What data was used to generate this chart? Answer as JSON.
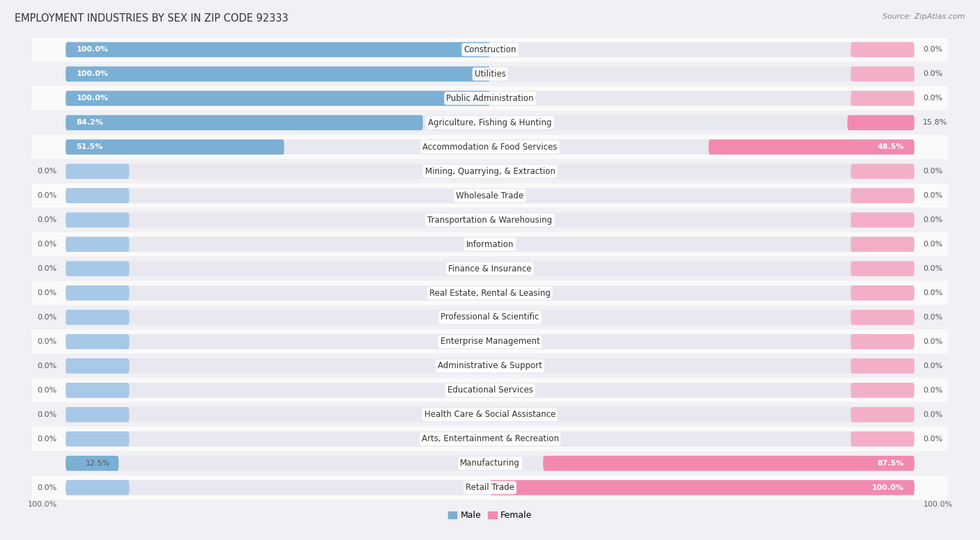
{
  "title": "EMPLOYMENT INDUSTRIES BY SEX IN ZIP CODE 92333",
  "source": "Source: ZipAtlas.com",
  "categories": [
    "Construction",
    "Utilities",
    "Public Administration",
    "Agriculture, Fishing & Hunting",
    "Accommodation & Food Services",
    "Mining, Quarrying, & Extraction",
    "Wholesale Trade",
    "Transportation & Warehousing",
    "Information",
    "Finance & Insurance",
    "Real Estate, Rental & Leasing",
    "Professional & Scientific",
    "Enterprise Management",
    "Administrative & Support",
    "Educational Services",
    "Health Care & Social Assistance",
    "Arts, Entertainment & Recreation",
    "Manufacturing",
    "Retail Trade"
  ],
  "male": [
    100.0,
    100.0,
    100.0,
    84.2,
    51.5,
    0.0,
    0.0,
    0.0,
    0.0,
    0.0,
    0.0,
    0.0,
    0.0,
    0.0,
    0.0,
    0.0,
    0.0,
    12.5,
    0.0
  ],
  "female": [
    0.0,
    0.0,
    0.0,
    15.8,
    48.5,
    0.0,
    0.0,
    0.0,
    0.0,
    0.0,
    0.0,
    0.0,
    0.0,
    0.0,
    0.0,
    0.0,
    0.0,
    87.5,
    100.0
  ],
  "male_color": "#7bafd4",
  "female_color": "#f28ab0",
  "male_stub_color": "#a8c8e8",
  "female_stub_color": "#f4afc8",
  "container_color": "#e8e8f0",
  "bg_color": "#f0f0f5",
  "row_colors": [
    "#fafafa",
    "#f0f0f5"
  ],
  "bar_height": 0.62,
  "stub_size": 15.0,
  "label_fontsize": 8.0,
  "category_fontsize": 8.5,
  "title_fontsize": 10.5,
  "source_fontsize": 8.0,
  "legend_fontsize": 9.0,
  "total_width": 100.0,
  "xlim_left": -112,
  "xlim_right": 112
}
